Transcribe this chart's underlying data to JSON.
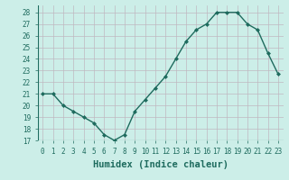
{
  "x": [
    0,
    1,
    2,
    3,
    4,
    5,
    6,
    7,
    8,
    9,
    10,
    11,
    12,
    13,
    14,
    15,
    16,
    17,
    18,
    19,
    20,
    21,
    22,
    23
  ],
  "y": [
    21,
    21,
    20,
    19.5,
    19,
    18.5,
    17.5,
    17,
    17.5,
    19.5,
    20.5,
    21.5,
    22.5,
    24,
    25.5,
    26.5,
    27,
    28,
    28,
    28,
    27,
    26.5,
    24.5,
    22.7
  ],
  "line_color": "#1e6b5e",
  "marker": "D",
  "marker_size": 2.0,
  "bg_color": "#cceee8",
  "grid_color": "#c0b8c0",
  "xlabel": "Humidex (Indice chaleur)",
  "ylim": [
    17,
    28.6
  ],
  "xlim": [
    -0.5,
    23.5
  ],
  "yticks": [
    17,
    18,
    19,
    20,
    21,
    22,
    23,
    24,
    25,
    26,
    27,
    28
  ],
  "xticks": [
    0,
    1,
    2,
    3,
    4,
    5,
    6,
    7,
    8,
    9,
    10,
    11,
    12,
    13,
    14,
    15,
    16,
    17,
    18,
    19,
    20,
    21,
    22,
    23
  ],
  "tick_fontsize": 5.5,
  "xlabel_fontsize": 7.5,
  "linewidth": 1.0
}
